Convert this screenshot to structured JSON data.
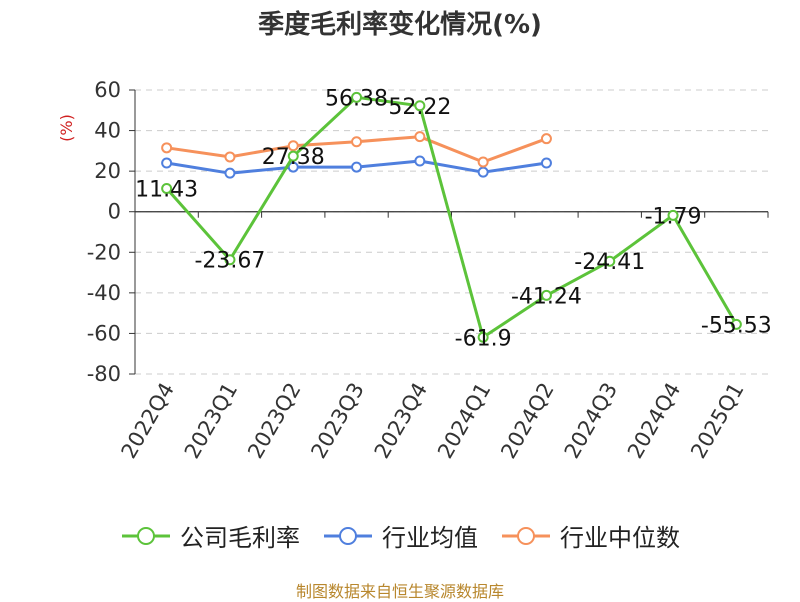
{
  "chart_data": {
    "type": "line",
    "title": "季度毛利率变化情况(%)",
    "ylabel": "(%)",
    "xlabel": "",
    "categories": [
      "2022Q4",
      "2023Q1",
      "2023Q2",
      "2023Q3",
      "2023Q4",
      "2024Q1",
      "2024Q2",
      "2024Q3",
      "2024Q4",
      "2025Q1"
    ],
    "yticks": [
      "60",
      "40",
      "20",
      "0",
      "-20",
      "-40",
      "-60",
      "-80"
    ],
    "ylim": [
      -80,
      60
    ],
    "grid": true,
    "legend_position": "bottom",
    "series": [
      {
        "name": "公司毛利率",
        "color": "#5cc33a",
        "values": [
          11.43,
          -23.67,
          27.38,
          56.38,
          52.22,
          -61.9,
          -41.24,
          -24.41,
          -1.79,
          -55.53
        ],
        "labels": [
          "11.43",
          "-23.67",
          "27.38",
          "56.38",
          "52.22",
          "-61.9",
          "-41.24",
          "-24.41",
          "-1.79",
          "-55.53"
        ]
      },
      {
        "name": "行业均值",
        "color": "#4f7fde",
        "values": [
          24,
          19,
          22,
          22,
          25,
          19.5,
          24,
          null,
          null,
          null
        ]
      },
      {
        "name": "行业中位数",
        "color": "#f6915b",
        "values": [
          31.5,
          27,
          32.5,
          34.5,
          37,
          24.5,
          36,
          null,
          null,
          null
        ]
      }
    ]
  },
  "source": "制图数据来自恒生聚源数据库"
}
